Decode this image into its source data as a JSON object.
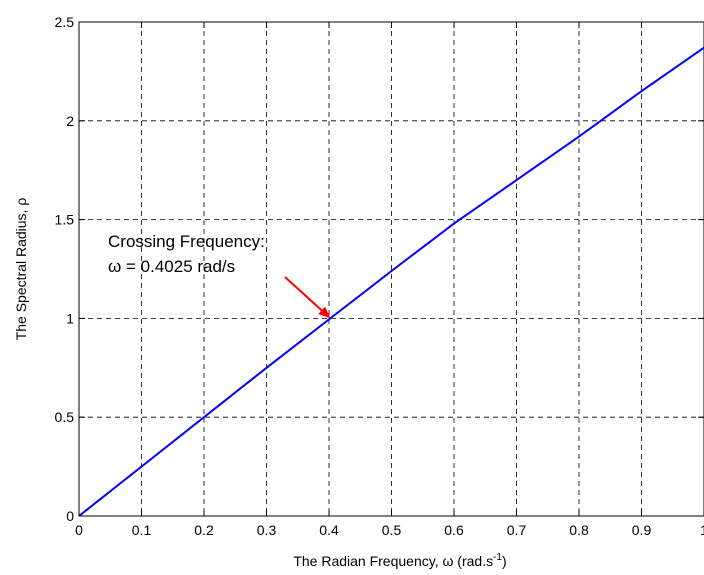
{
  "chart_data": {
    "type": "line",
    "title": "",
    "xlabel": "The Radian Frequency, ω (rad.s",
    "xlabel_sup": "-1",
    "xlabel_close": ")",
    "ylabel": "The Spectral Radius, ρ",
    "xlim": [
      0,
      1
    ],
    "ylim": [
      0,
      2.5
    ],
    "xticks": [
      "0",
      "0.1",
      "0.2",
      "0.3",
      "0.4",
      "0.5",
      "0.6",
      "0.7",
      "0.8",
      "0.9",
      "1"
    ],
    "xtick_values": [
      0,
      0.1,
      0.2,
      0.3,
      0.4,
      0.5,
      0.6,
      0.7,
      0.8,
      0.9,
      1
    ],
    "yticks": [
      "0",
      "0.5",
      "1",
      "1.5",
      "2",
      "2.5"
    ],
    "ytick_values": [
      0,
      0.5,
      1,
      1.5,
      2,
      2.5
    ],
    "grid": true,
    "series": [
      {
        "color": "#0000ff",
        "x": [
          0,
          0.1,
          0.2,
          0.3,
          0.4,
          0.5,
          0.6,
          0.7,
          0.8,
          0.9,
          1.0
        ],
        "y": [
          0,
          0.25,
          0.5,
          0.75,
          0.995,
          1.24,
          1.48,
          1.7,
          1.92,
          2.15,
          2.37
        ]
      }
    ],
    "annotation": {
      "line1": "Crossing Frequency:",
      "line2": "ω = 0.4025 rad/s",
      "x": 0.4025,
      "y": 1.0,
      "arrow_color": "#ff0000"
    }
  }
}
